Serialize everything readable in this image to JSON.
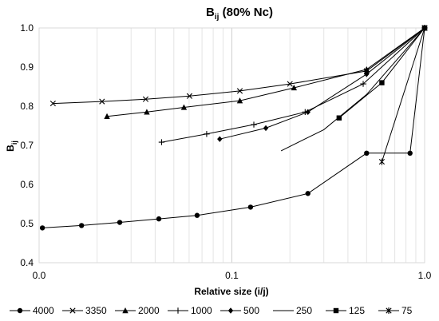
{
  "chart_data": {
    "type": "line",
    "title_main": "B",
    "title_sub": "ij",
    "title_rest": " (80% Nc)",
    "xlabel": "Relative size (i/j)",
    "ylabel_main": "B",
    "ylabel_sub": "ij",
    "xscale": "log",
    "xlim": [
      0.01,
      1.0
    ],
    "ylim": [
      0.4,
      1.0
    ],
    "xticks": [
      0.01,
      0.1,
      1.0
    ],
    "xtick_labels": [
      "0.0",
      "0.1",
      "1.0"
    ],
    "yticks": [
      0.4,
      0.5,
      0.6,
      0.7,
      0.8,
      0.9,
      1.0
    ],
    "ytick_labels": [
      "0.4",
      "0.5",
      "0.6",
      "0.7",
      "0.8",
      "0.9",
      "1.0"
    ],
    "grid": "vertical major and minor",
    "legend_position": "bottom",
    "series": [
      {
        "name": "4000",
        "marker": "circle",
        "x": [
          0.0104,
          0.0166,
          0.0262,
          0.0418,
          0.066,
          0.125,
          0.248,
          0.5,
          0.84,
          1.0
        ],
        "y": [
          0.489,
          0.495,
          0.503,
          0.512,
          0.521,
          0.542,
          0.577,
          0.68,
          0.68,
          1.0
        ]
      },
      {
        "name": "3350",
        "marker": "x",
        "x": [
          0.0118,
          0.0212,
          0.0357,
          0.0603,
          0.11,
          0.2,
          0.5,
          1.0
        ],
        "y": [
          0.807,
          0.812,
          0.818,
          0.826,
          0.839,
          0.857,
          0.89,
          1.0
        ]
      },
      {
        "name": "2000",
        "marker": "triangle",
        "x": [
          0.0225,
          0.0362,
          0.0564,
          0.11,
          0.21,
          0.5,
          1.0
        ],
        "y": [
          0.774,
          0.785,
          0.797,
          0.814,
          0.847,
          0.894,
          1.0
        ]
      },
      {
        "name": "1000",
        "marker": "plus",
        "x": [
          0.0432,
          0.074,
          0.13,
          0.24,
          0.48,
          1.0
        ],
        "y": [
          0.708,
          0.729,
          0.753,
          0.785,
          0.857,
          1.0
        ]
      },
      {
        "name": "500",
        "marker": "diamond",
        "x": [
          0.0865,
          0.15,
          0.248,
          0.5,
          1.0
        ],
        "y": [
          0.716,
          0.744,
          0.785,
          0.882,
          1.0
        ]
      },
      {
        "name": "250",
        "marker": "none",
        "x": [
          0.18,
          0.3,
          0.5,
          1.0
        ],
        "y": [
          0.686,
          0.74,
          0.83,
          1.0
        ]
      },
      {
        "name": "125",
        "marker": "square",
        "x": [
          0.36,
          0.6,
          1.0
        ],
        "y": [
          0.77,
          0.86,
          1.0
        ]
      },
      {
        "name": "75",
        "marker": "star",
        "x": [
          0.6,
          1.0
        ],
        "y": [
          0.658,
          1.0
        ]
      }
    ]
  }
}
